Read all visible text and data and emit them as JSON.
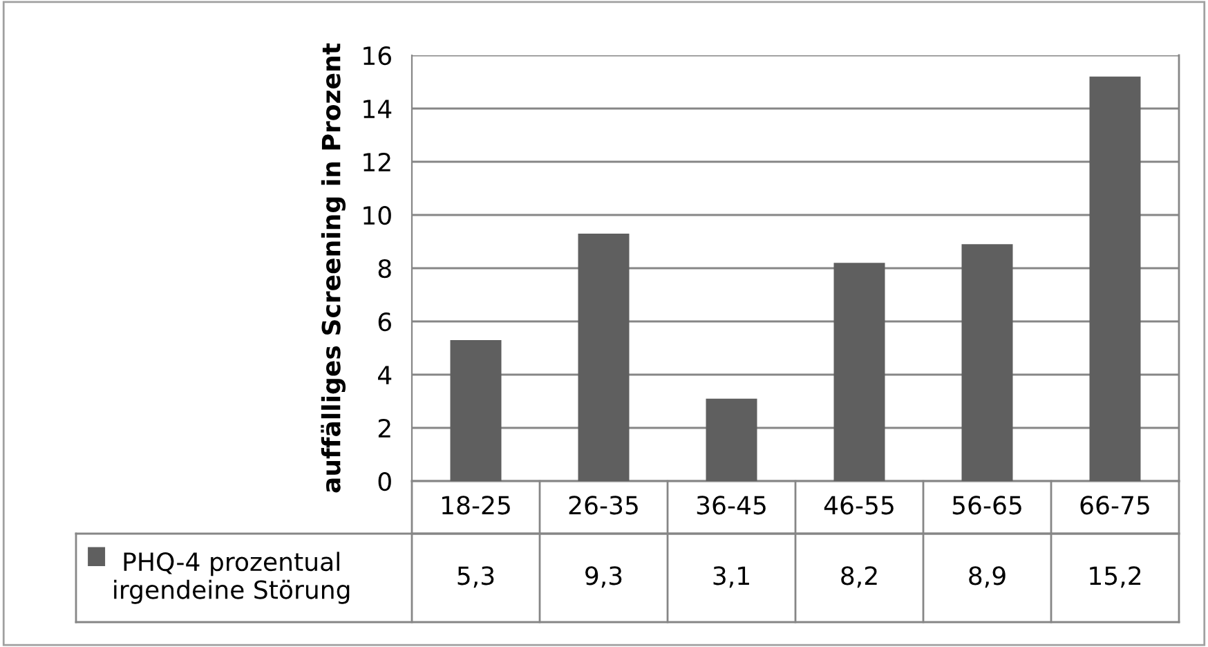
{
  "chart_data": {
    "type": "bar",
    "ylabel": "auffälliges Screening in Prozent",
    "categories": [
      "18-25",
      "26-35",
      "36-45",
      "46-55",
      "56-65",
      "66-75"
    ],
    "series": [
      {
        "name": "PHQ-4 prozentual irgendeine Störung",
        "color": "#5f5f5f",
        "values": [
          5.3,
          9.3,
          3.1,
          8.2,
          8.9,
          15.2
        ],
        "value_labels": [
          "5,3",
          "9,3",
          "3,1",
          "8,2",
          "8,9",
          "15,2"
        ]
      }
    ],
    "ylim": [
      0,
      16
    ],
    "yticks": [
      0,
      2,
      4,
      6,
      8,
      10,
      12,
      14,
      16
    ],
    "grid": "y",
    "legend": "bottom"
  }
}
